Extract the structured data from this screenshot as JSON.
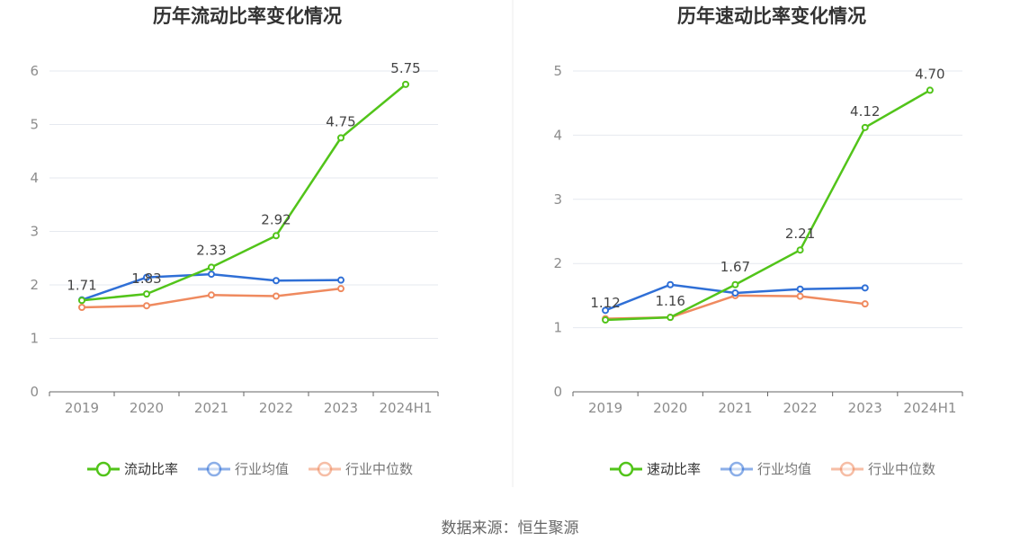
{
  "source": "数据来源：恒生聚源",
  "colors": {
    "main": "#52c41a",
    "avg": "#2f6fd6",
    "median": "#ef8a5f",
    "axis": "#666666",
    "tick": "#8c8c8c",
    "grid": "#e6e9ef",
    "divider": "#eeeeee",
    "title": "#333333"
  },
  "chart_data": [
    {
      "type": "line",
      "title": "历年流动比率变化情况",
      "categories": [
        "2019",
        "2020",
        "2021",
        "2022",
        "2023",
        "2024H1"
      ],
      "ylim": [
        0,
        6
      ],
      "yticks": [
        0,
        1,
        2,
        3,
        4,
        5,
        6
      ],
      "grid": true,
      "legend": "bottom",
      "series": [
        {
          "name": "流动比率",
          "key": "main",
          "values": [
            1.71,
            1.83,
            2.33,
            2.92,
            4.75,
            5.75
          ],
          "labels": [
            "1.71",
            "1.83",
            "2.33",
            "2.92",
            "4.75",
            "5.75"
          ]
        },
        {
          "name": "行业均值",
          "key": "avg",
          "values": [
            1.72,
            2.14,
            2.2,
            2.08,
            2.09,
            null
          ]
        },
        {
          "name": "行业中位数",
          "key": "median",
          "values": [
            1.58,
            1.61,
            1.81,
            1.79,
            1.93,
            null
          ]
        }
      ]
    },
    {
      "type": "line",
      "title": "历年速动比率变化情况",
      "categories": [
        "2019",
        "2020",
        "2021",
        "2022",
        "2023",
        "2024H1"
      ],
      "ylim": [
        0,
        5
      ],
      "yticks": [
        0,
        1,
        2,
        3,
        4,
        5
      ],
      "grid": true,
      "legend": "bottom",
      "series": [
        {
          "name": "速动比率",
          "key": "main",
          "values": [
            1.12,
            1.16,
            1.67,
            2.21,
            4.12,
            4.7
          ],
          "labels": [
            "1.12",
            "1.16",
            "1.67",
            "2.21",
            "4.12",
            "4.70"
          ]
        },
        {
          "name": "行业均值",
          "key": "avg",
          "values": [
            1.27,
            1.67,
            1.54,
            1.6,
            1.62,
            null
          ]
        },
        {
          "name": "行业中位数",
          "key": "median",
          "values": [
            1.14,
            1.16,
            1.5,
            1.49,
            1.37,
            null
          ]
        }
      ]
    }
  ]
}
